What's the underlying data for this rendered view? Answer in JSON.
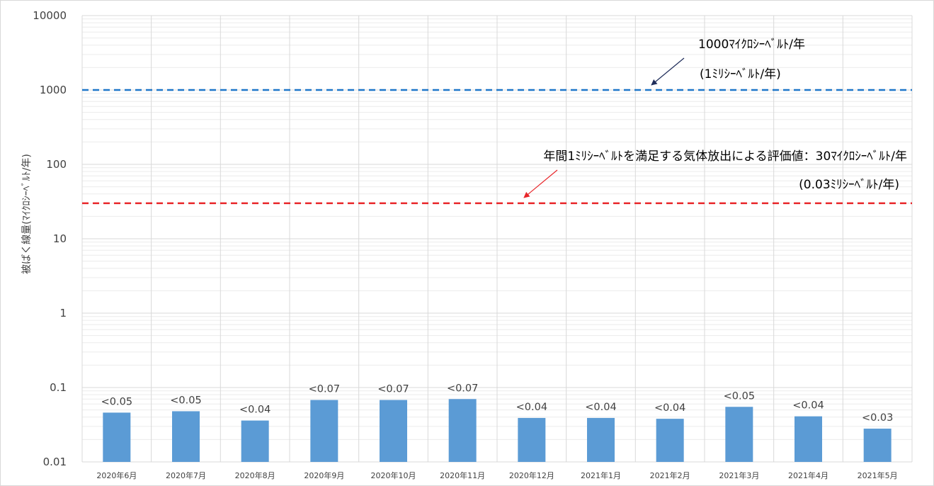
{
  "chart_data": {
    "type": "bar",
    "title": "",
    "xlabel": "",
    "ylabel": "被ばく線量(ﾏｲｸﾛｼｰﾍﾞﾙﾄ/年)",
    "yscale": "log",
    "ylim": [
      0.01,
      10000
    ],
    "yticks": [
      "10000",
      "1000",
      "100",
      "10",
      "1",
      "0.1",
      "0.01"
    ],
    "grid": true,
    "categories": [
      "2020年6月",
      "2020年7月",
      "2020年8月",
      "2020年9月",
      "2020年10月",
      "2020年11月",
      "2020年12月",
      "2021年1月",
      "2021年2月",
      "2021年3月",
      "2021年4月",
      "2021年5月"
    ],
    "values": [
      0.046,
      0.048,
      0.036,
      0.068,
      0.068,
      0.07,
      0.039,
      0.039,
      0.038,
      0.055,
      0.041,
      0.028
    ],
    "data_labels": [
      "<0.05",
      "<0.05",
      "<0.04",
      "<0.07",
      "<0.07",
      "<0.07",
      "<0.04",
      "<0.04",
      "<0.04",
      "<0.05",
      "<0.04",
      "<0.03"
    ],
    "reference_lines": [
      {
        "value": 1000,
        "color": "#1f77c9",
        "style": "dashed",
        "label_lines": [
          "1000ﾏｲｸﾛｼｰﾍﾞﾙﾄ/年",
          "(1ﾐﾘｼｰﾍﾞﾙﾄ/年)"
        ],
        "arrow_color": "#1f2d5a"
      },
      {
        "value": 30,
        "color": "#e8262a",
        "style": "dashed",
        "label_lines": [
          "年間1ﾐﾘｼｰﾍﾞﾙﾄを満足する気体放出による評価値：30ﾏｲｸﾛｼｰﾍﾞﾙﾄ/年",
          "(0.03ﾐﾘｼｰﾍﾞﾙﾄ/年)"
        ],
        "arrow_color": "#e8262a"
      }
    ],
    "colors": {
      "bar": "#5b9bd5",
      "grid": "#d9d9d9",
      "minor_grid": "#ececec"
    }
  }
}
